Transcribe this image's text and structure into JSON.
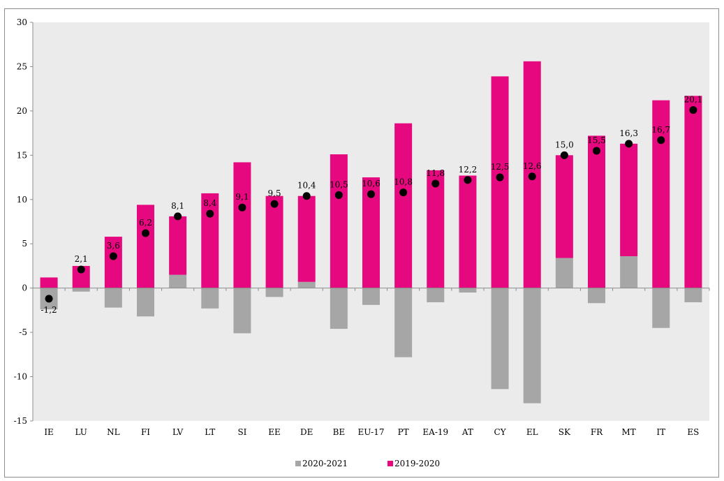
{
  "chart_data": {
    "type": "bar",
    "stacked": true,
    "categories": [
      "IE",
      "LU",
      "NL",
      "FI",
      "LV",
      "LT",
      "SI",
      "EE",
      "DE",
      "BE",
      "EU-17",
      "PT",
      "EA-19",
      "AT",
      "CY",
      "EL",
      "SK",
      "FR",
      "MT",
      "IT",
      "ES"
    ],
    "series": [
      {
        "name": "2020-2021",
        "color": "#a6a6a6",
        "values": [
          -2.4,
          -0.4,
          -2.2,
          -3.2,
          1.5,
          -2.3,
          -5.1,
          -1.0,
          0.7,
          -4.6,
          -1.9,
          -7.8,
          -1.6,
          -0.5,
          -11.4,
          -13.0,
          3.4,
          -1.7,
          3.6,
          -4.5,
          -1.6
        ]
      },
      {
        "name": "2019-2020",
        "color": "#e5087e",
        "values": [
          1.2,
          2.5,
          5.8,
          9.4,
          6.6,
          10.7,
          14.2,
          10.4,
          9.7,
          15.1,
          12.5,
          18.6,
          13.3,
          12.7,
          23.9,
          25.6,
          11.6,
          17.2,
          12.7,
          21.2,
          21.7
        ]
      }
    ],
    "markers": {
      "values": [
        -1.2,
        2.1,
        3.6,
        6.2,
        8.1,
        8.4,
        9.1,
        9.5,
        10.4,
        10.5,
        10.6,
        10.8,
        11.8,
        12.2,
        12.5,
        12.6,
        15.0,
        15.5,
        16.3,
        16.7,
        20.1
      ],
      "labels": [
        "-1,2",
        "2,1",
        "3,6",
        "6,2",
        "8,1",
        "8,4",
        "9,1",
        "9,5",
        "10,4",
        "10,5",
        "10,6",
        "10,8",
        "11,8",
        "12,2",
        "12,5",
        "12,6",
        "15,0",
        "15,5",
        "16,3",
        "16,7",
        "20,1"
      ],
      "color": "#000000"
    },
    "ylim": [
      -15,
      30
    ],
    "yticks": [
      -15,
      -10,
      -5,
      0,
      5,
      10,
      15,
      20,
      25,
      30
    ],
    "ytick_labels": [
      "-15",
      "-10",
      "-5",
      "0",
      "5",
      "10",
      "15",
      "20",
      "25",
      "30"
    ],
    "plot_background": "#ebebeb",
    "grid": false,
    "legend_position": "bottom",
    "title": "",
    "xlabel": "",
    "ylabel": ""
  }
}
